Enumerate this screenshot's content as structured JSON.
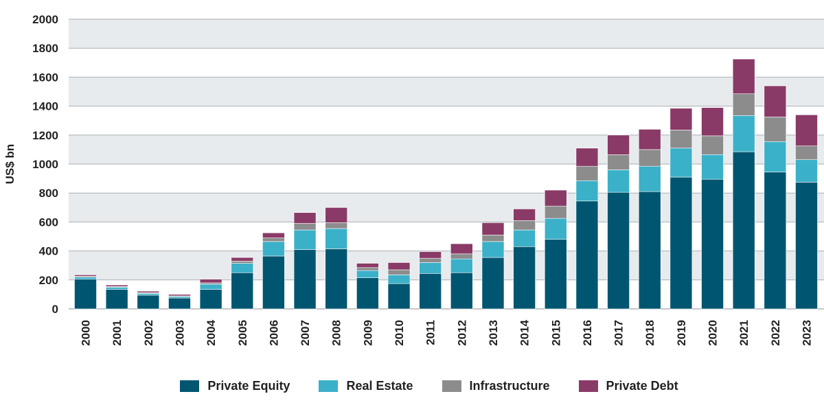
{
  "chart_data": {
    "type": "bar",
    "stacked": true,
    "title": "",
    "xlabel": "",
    "ylabel": "US$ bn",
    "ylim": [
      0,
      2000
    ],
    "yticks": [
      0,
      200,
      400,
      600,
      800,
      1000,
      1200,
      1400,
      1600,
      1800,
      2000
    ],
    "grid": true,
    "legend_position": "bottom",
    "categories": [
      "2000",
      "2001",
      "2002",
      "2003",
      "2004",
      "2005",
      "2006",
      "2007",
      "2008",
      "2009",
      "2010",
      "2011",
      "2012",
      "2013",
      "2014",
      "2015",
      "2016",
      "2017",
      "2018",
      "2019",
      "2020",
      "2021",
      "2022",
      "2023"
    ],
    "series": [
      {
        "name": "Private Equity",
        "color": "#005670",
        "values": [
          205,
          135,
          95,
          75,
          135,
          250,
          365,
          410,
          415,
          215,
          175,
          245,
          250,
          355,
          430,
          480,
          745,
          805,
          810,
          910,
          895,
          1085,
          945,
          875
        ]
      },
      {
        "name": "Real Estate",
        "color": "#3BB0C9",
        "values": [
          15,
          15,
          12,
          10,
          35,
          65,
          100,
          135,
          140,
          50,
          60,
          75,
          95,
          110,
          115,
          145,
          140,
          155,
          175,
          200,
          170,
          250,
          210,
          155
        ]
      },
      {
        "name": "Infrastructure",
        "color": "#8C8C8C",
        "values": [
          5,
          5,
          5,
          5,
          10,
          15,
          25,
          45,
          40,
          20,
          35,
          30,
          35,
          45,
          65,
          85,
          100,
          105,
          115,
          125,
          130,
          150,
          170,
          95
        ]
      },
      {
        "name": "Private Debt",
        "color": "#8A3A66",
        "values": [
          10,
          10,
          10,
          10,
          25,
          25,
          35,
          75,
          105,
          30,
          50,
          45,
          70,
          85,
          80,
          110,
          125,
          135,
          140,
          150,
          195,
          240,
          215,
          215
        ]
      }
    ]
  },
  "colors": {
    "band": "#E8EBEE",
    "grid": "#A9AEB2",
    "text": "#222222"
  }
}
